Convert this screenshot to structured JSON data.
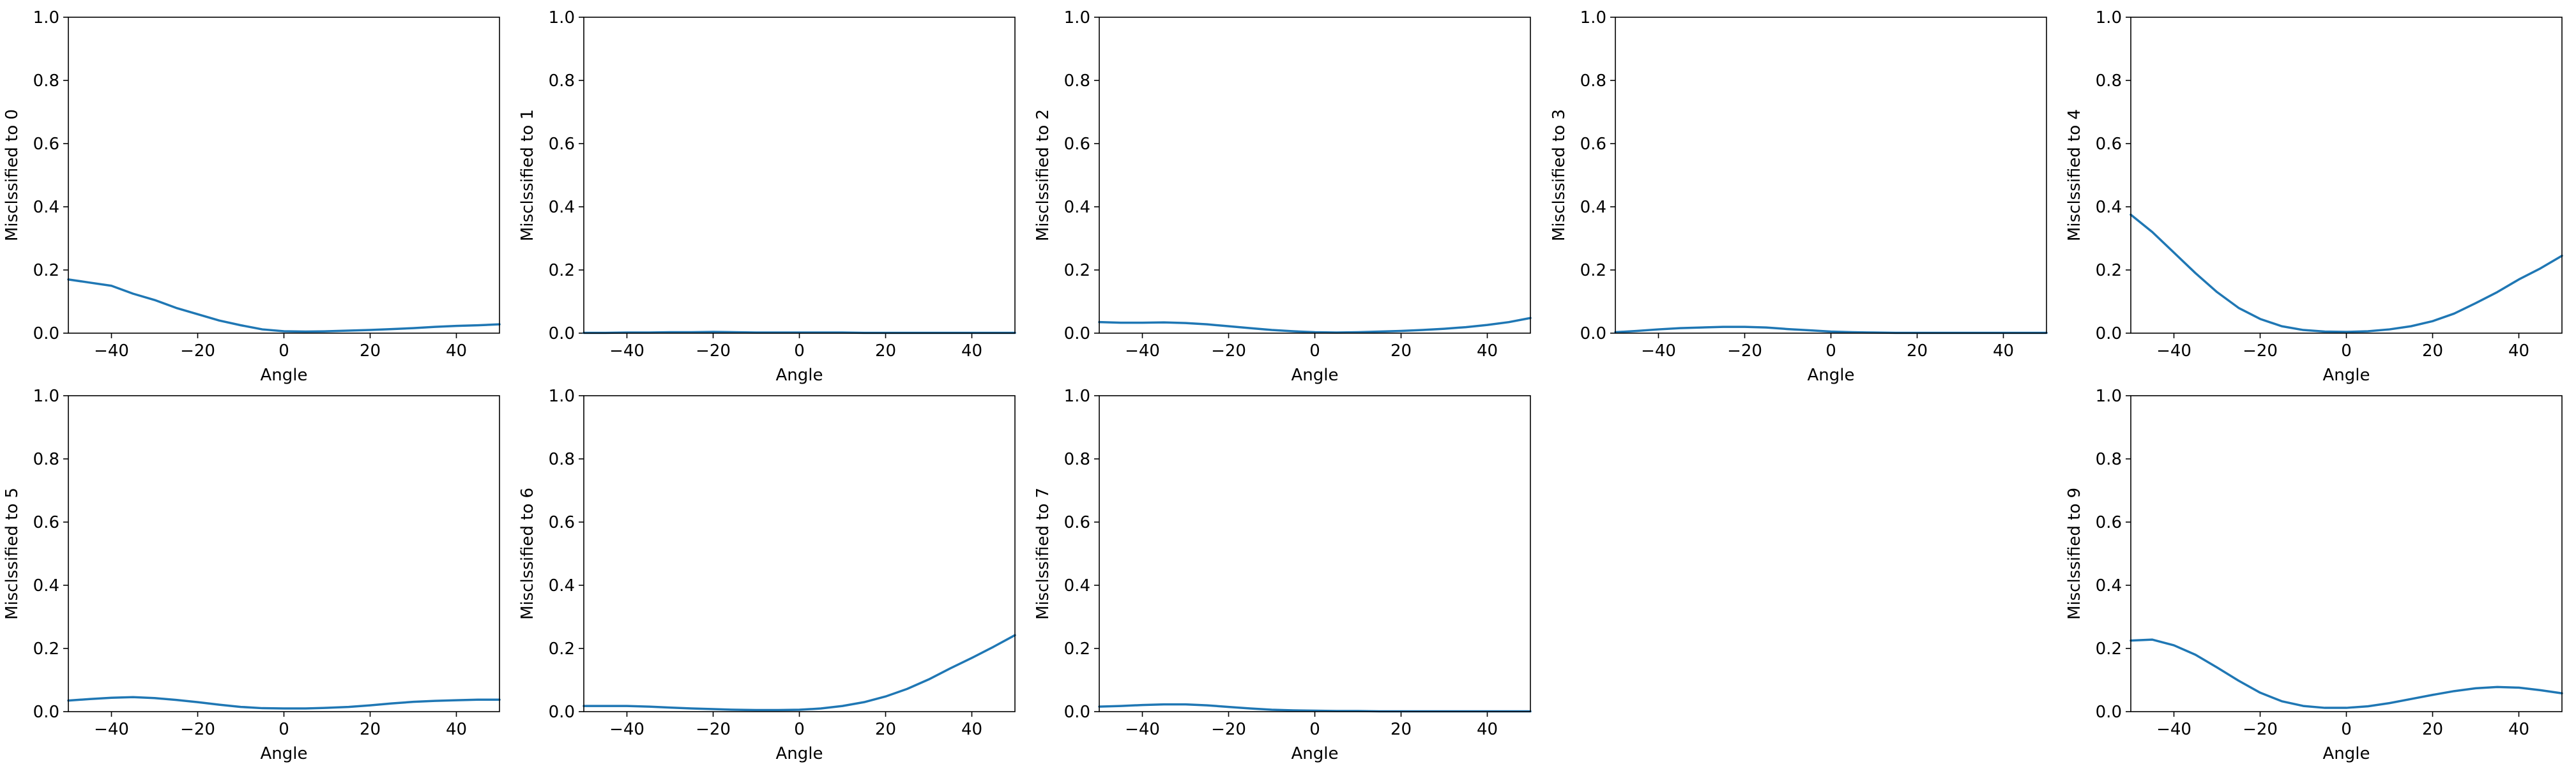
{
  "chart_data": [
    {
      "type": "line",
      "ylabel": "Misclssified to 0",
      "xlabel": "Angle",
      "xlim": [
        -50,
        50
      ],
      "ylim": [
        0,
        1
      ],
      "xticks": [
        -40,
        -20,
        0,
        20,
        40
      ],
      "yticks": [
        0.0,
        0.2,
        0.4,
        0.6,
        0.8,
        1.0
      ],
      "x": [
        -50,
        -45,
        -40,
        -35,
        -30,
        -25,
        -20,
        -15,
        -10,
        -5,
        0,
        5,
        10,
        15,
        20,
        25,
        30,
        35,
        40,
        45,
        50
      ],
      "series": [
        {
          "values": [
            0.17,
            0.16,
            0.15,
            0.125,
            0.105,
            0.08,
            0.06,
            0.04,
            0.025,
            0.012,
            0.006,
            0.005,
            0.006,
            0.008,
            0.01,
            0.013,
            0.016,
            0.02,
            0.023,
            0.025,
            0.028
          ]
        }
      ]
    },
    {
      "type": "line",
      "ylabel": "Misclssified to 1",
      "xlabel": "Angle",
      "xlim": [
        -50,
        50
      ],
      "ylim": [
        0,
        1
      ],
      "xticks": [
        -40,
        -20,
        0,
        20,
        40
      ],
      "yticks": [
        0.0,
        0.2,
        0.4,
        0.6,
        0.8,
        1.0
      ],
      "x": [
        -50,
        -45,
        -40,
        -35,
        -30,
        -25,
        -20,
        -15,
        -10,
        -5,
        0,
        5,
        10,
        15,
        20,
        25,
        30,
        35,
        40,
        45,
        50
      ],
      "series": [
        {
          "values": [
            0.001,
            0.001,
            0.002,
            0.002,
            0.003,
            0.003,
            0.004,
            0.003,
            0.002,
            0.002,
            0.002,
            0.002,
            0.002,
            0.001,
            0.001,
            0.001,
            0.001,
            0.001,
            0.001,
            0.001,
            0.001
          ]
        }
      ]
    },
    {
      "type": "line",
      "ylabel": "Misclssified to 2",
      "xlabel": "Angle",
      "xlim": [
        -50,
        50
      ],
      "ylim": [
        0,
        1
      ],
      "xticks": [
        -40,
        -20,
        0,
        20,
        40
      ],
      "yticks": [
        0.0,
        0.2,
        0.4,
        0.6,
        0.8,
        1.0
      ],
      "x": [
        -50,
        -45,
        -40,
        -35,
        -30,
        -25,
        -20,
        -15,
        -10,
        -5,
        0,
        5,
        10,
        15,
        20,
        25,
        30,
        35,
        40,
        45,
        50
      ],
      "series": [
        {
          "values": [
            0.035,
            0.033,
            0.033,
            0.034,
            0.032,
            0.028,
            0.022,
            0.016,
            0.01,
            0.006,
            0.003,
            0.002,
            0.003,
            0.005,
            0.007,
            0.01,
            0.014,
            0.019,
            0.026,
            0.035,
            0.048
          ]
        }
      ]
    },
    {
      "type": "line",
      "ylabel": "Misclssified to 3",
      "xlabel": "Angle",
      "xlim": [
        -50,
        50
      ],
      "ylim": [
        0,
        1
      ],
      "xticks": [
        -40,
        -20,
        0,
        20,
        40
      ],
      "yticks": [
        0.0,
        0.2,
        0.4,
        0.6,
        0.8,
        1.0
      ],
      "x": [
        -50,
        -45,
        -40,
        -35,
        -30,
        -25,
        -20,
        -15,
        -10,
        -5,
        0,
        5,
        10,
        15,
        20,
        25,
        30,
        35,
        40,
        45,
        50
      ],
      "series": [
        {
          "values": [
            0.003,
            0.007,
            0.012,
            0.016,
            0.018,
            0.02,
            0.02,
            0.018,
            0.013,
            0.009,
            0.005,
            0.003,
            0.002,
            0.001,
            0.001,
            0.001,
            0.001,
            0.001,
            0.001,
            0.001,
            0.001
          ]
        }
      ]
    },
    {
      "type": "line",
      "ylabel": "Misclssified to 4",
      "xlabel": "Angle",
      "xlim": [
        -50,
        50
      ],
      "ylim": [
        0,
        1
      ],
      "xticks": [
        -40,
        -20,
        0,
        20,
        40
      ],
      "yticks": [
        0.0,
        0.2,
        0.4,
        0.6,
        0.8,
        1.0
      ],
      "x": [
        -50,
        -45,
        -40,
        -35,
        -30,
        -25,
        -20,
        -15,
        -10,
        -5,
        0,
        5,
        10,
        15,
        20,
        25,
        30,
        35,
        40,
        45,
        50
      ],
      "series": [
        {
          "values": [
            0.375,
            0.32,
            0.255,
            0.19,
            0.13,
            0.08,
            0.045,
            0.022,
            0.01,
            0.005,
            0.004,
            0.006,
            0.012,
            0.022,
            0.038,
            0.062,
            0.095,
            0.13,
            0.17,
            0.205,
            0.245
          ]
        }
      ]
    },
    {
      "type": "line",
      "ylabel": "Misclssified to 5",
      "xlabel": "Angle",
      "xlim": [
        -50,
        50
      ],
      "ylim": [
        0,
        1
      ],
      "xticks": [
        -40,
        -20,
        0,
        20,
        40
      ],
      "yticks": [
        0.0,
        0.2,
        0.4,
        0.6,
        0.8,
        1.0
      ],
      "x": [
        -50,
        -45,
        -40,
        -35,
        -30,
        -25,
        -20,
        -15,
        -10,
        -5,
        0,
        5,
        10,
        15,
        20,
        25,
        30,
        35,
        40,
        45,
        50
      ],
      "series": [
        {
          "values": [
            0.035,
            0.04,
            0.044,
            0.046,
            0.043,
            0.037,
            0.03,
            0.022,
            0.015,
            0.011,
            0.01,
            0.01,
            0.012,
            0.015,
            0.02,
            0.026,
            0.031,
            0.034,
            0.036,
            0.038,
            0.038
          ]
        }
      ]
    },
    {
      "type": "line",
      "ylabel": "Misclssified to 6",
      "xlabel": "Angle",
      "xlim": [
        -50,
        50
      ],
      "ylim": [
        0,
        1
      ],
      "xticks": [
        -40,
        -20,
        0,
        20,
        40
      ],
      "yticks": [
        0.0,
        0.2,
        0.4,
        0.6,
        0.8,
        1.0
      ],
      "x": [
        -50,
        -45,
        -40,
        -35,
        -30,
        -25,
        -20,
        -15,
        -10,
        -5,
        0,
        5,
        10,
        15,
        20,
        25,
        30,
        35,
        40,
        45,
        50
      ],
      "series": [
        {
          "values": [
            0.018,
            0.018,
            0.018,
            0.016,
            0.013,
            0.01,
            0.008,
            0.006,
            0.005,
            0.005,
            0.006,
            0.01,
            0.018,
            0.03,
            0.048,
            0.072,
            0.102,
            0.137,
            0.17,
            0.205,
            0.242
          ]
        }
      ]
    },
    {
      "type": "line",
      "ylabel": "Misclssified to 7",
      "xlabel": "Angle",
      "xlim": [
        -50,
        50
      ],
      "ylim": [
        0,
        1
      ],
      "xticks": [
        -40,
        -20,
        0,
        20,
        40
      ],
      "yticks": [
        0.0,
        0.2,
        0.4,
        0.6,
        0.8,
        1.0
      ],
      "x": [
        -50,
        -45,
        -40,
        -35,
        -30,
        -25,
        -20,
        -15,
        -10,
        -5,
        0,
        5,
        10,
        15,
        20,
        25,
        30,
        35,
        40,
        45,
        50
      ],
      "series": [
        {
          "values": [
            0.016,
            0.018,
            0.021,
            0.023,
            0.023,
            0.02,
            0.015,
            0.01,
            0.006,
            0.004,
            0.003,
            0.002,
            0.002,
            0.001,
            0.001,
            0.001,
            0.001,
            0.001,
            0.001,
            0.001,
            0.001
          ]
        }
      ]
    },
    {
      "type": "line",
      "ylabel": "Misclssified to 9",
      "xlabel": "Angle",
      "xlim": [
        -50,
        50
      ],
      "ylim": [
        0,
        1
      ],
      "xticks": [
        -40,
        -20,
        0,
        20,
        40
      ],
      "yticks": [
        0.0,
        0.2,
        0.4,
        0.6,
        0.8,
        1.0
      ],
      "x": [
        -50,
        -45,
        -40,
        -35,
        -30,
        -25,
        -20,
        -15,
        -10,
        -5,
        0,
        5,
        10,
        15,
        20,
        25,
        30,
        35,
        40,
        45,
        50
      ],
      "series": [
        {
          "values": [
            0.225,
            0.228,
            0.21,
            0.18,
            0.14,
            0.098,
            0.06,
            0.033,
            0.018,
            0.012,
            0.012,
            0.017,
            0.027,
            0.04,
            0.053,
            0.065,
            0.074,
            0.078,
            0.076,
            0.068,
            0.058
          ]
        }
      ]
    }
  ],
  "style": {
    "line_color": "#1f77b4",
    "axis_color": "#000000"
  }
}
